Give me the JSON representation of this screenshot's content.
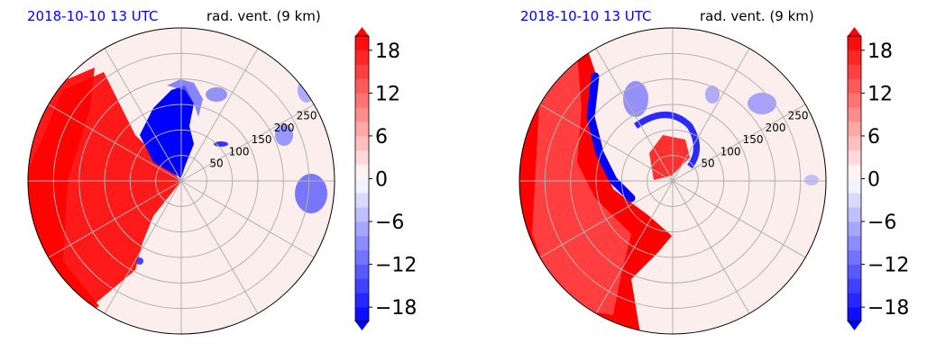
{
  "figure": {
    "panels": [
      {
        "date_label": "2018-10-10 13 UTC",
        "field_label": "rad. vent. (9 km)",
        "range_labels": [
          "50",
          "100",
          "150",
          "200",
          "250"
        ],
        "colorbar_ticks": [
          "18",
          "12",
          "6",
          "0",
          "−6",
          "−12",
          "−18"
        ]
      },
      {
        "date_label": "2018-10-10 13 UTC",
        "field_label": "rad. vent. (9 km)",
        "range_labels": [
          "50",
          "100",
          "150",
          "200",
          "250"
        ],
        "colorbar_ticks": [
          "18",
          "12",
          "6",
          "0",
          "−6",
          "−12",
          "−18"
        ]
      }
    ],
    "colors": {
      "title_date": "#0000ff",
      "positive": "#ff0000",
      "negative": "#0000ff",
      "near_zero": "#fdecec",
      "grid": "#b0b0b0"
    }
  },
  "chart_data": [
    {
      "type": "heatmap",
      "projection": "polar (radar PPI)",
      "title_left": "2018-10-10 13 UTC",
      "title_right": "rad. vent. (9 km)",
      "variable": "radial velocity",
      "range_rings": [
        50,
        100,
        150,
        200,
        250
      ],
      "radial_spokes_deg": [
        0,
        30,
        60,
        90,
        120,
        150,
        180,
        210,
        240,
        270,
        300,
        330
      ],
      "colorbar": {
        "min": -20,
        "max": 20,
        "step": 2,
        "ticks": [
          18,
          12,
          6,
          0,
          -6,
          -12,
          -18
        ],
        "extend": "both",
        "cmap": "bwr"
      },
      "grid": true,
      "features": [
        {
          "sign": "positive",
          "description": "large red area",
          "sector_deg": [
            210,
            315
          ],
          "value_approx": 20
        },
        {
          "sign": "negative",
          "description": "blue patch near center",
          "sector_deg": [
            315,
            355
          ],
          "value_approx": -20
        },
        {
          "sign": "negative",
          "description": "scattered blue cells",
          "sector_deg": [
            20,
            100
          ],
          "value_approx": -8
        }
      ]
    },
    {
      "type": "heatmap",
      "projection": "polar (radar PPI)",
      "title_left": "2018-10-10 13 UTC",
      "title_right": "rad. vent. (9 km)",
      "variable": "radial velocity",
      "range_rings": [
        50,
        100,
        150,
        200,
        250
      ],
      "radial_spokes_deg": [
        0,
        30,
        60,
        90,
        120,
        150,
        180,
        210,
        240,
        270,
        300,
        330
      ],
      "colorbar": {
        "min": -20,
        "max": 20,
        "step": 2,
        "ticks": [
          18,
          12,
          6,
          0,
          -6,
          -12,
          -18
        ],
        "extend": "both",
        "cmap": "bwr"
      },
      "grid": true,
      "features": [
        {
          "sign": "positive",
          "description": "red crescent band on west side",
          "sector_deg": [
            200,
            330
          ],
          "value_approx": 20
        },
        {
          "sign": "negative",
          "description": "blue arc along inner edge of red band",
          "sector_deg": [
            300,
            360
          ],
          "value_approx": -18
        },
        {
          "sign": "positive",
          "description": "small red core near center",
          "sector_deg": [
            0,
            90
          ],
          "value_approx": 14
        },
        {
          "sign": "negative",
          "description": "scattered blue cells",
          "sector_deg": [
            20,
            80
          ],
          "value_approx": -8
        }
      ]
    }
  ]
}
